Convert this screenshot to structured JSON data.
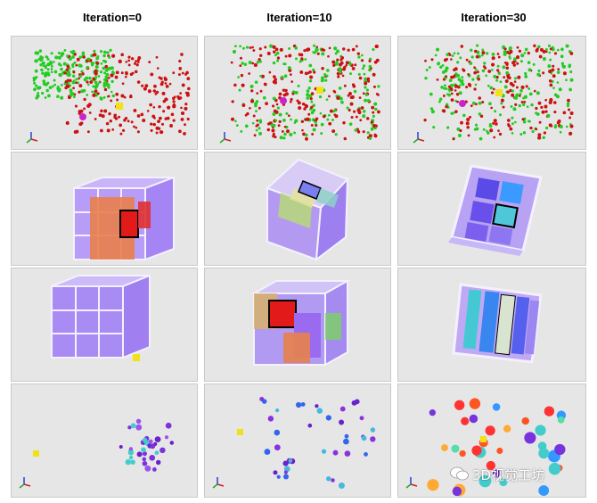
{
  "columns": [
    {
      "title": "Iteration=0"
    },
    {
      "title": "Iteration=10"
    },
    {
      "title": "Iteration=30"
    }
  ],
  "watermark": "3D视觉工坊",
  "colors": {
    "panel_bg": "#e6e6e6",
    "points_red": "#cc1111",
    "points_green": "#22cc22",
    "marker_yellow": "#f2e01a",
    "marker_magenta": "#cc22cc",
    "cube_purple": "#8a5cf0",
    "cube_frame": "#f4f0ff",
    "highlight_red": "#e31a1a"
  }
}
